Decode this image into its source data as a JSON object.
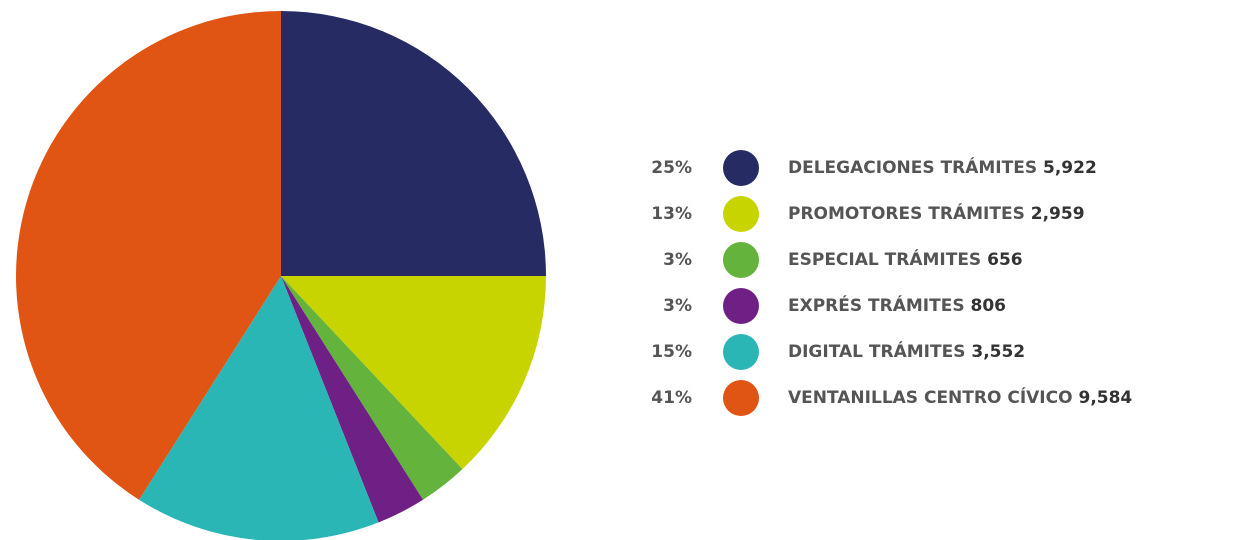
{
  "chart_data": {
    "type": "pie",
    "categories": [
      "DELEGACIONES TRÁMITES",
      "PROMOTORES TRÁMITES",
      "ESPECIAL TRÁMITES",
      "EXPRÉS TRÁMITES",
      "DIGITAL TRÁMITES",
      "VENTANILLAS CENTRO CÍVICO"
    ],
    "values": [
      25,
      13,
      3,
      3,
      15,
      41
    ],
    "value_labels": [
      "25%",
      "13%",
      "3%",
      "3%",
      "15%",
      "41%"
    ],
    "counts": [
      5922,
      2959,
      656,
      806,
      3552,
      9584
    ],
    "count_labels": [
      "5,922",
      "2,959",
      "656",
      "806",
      "3,552",
      "9,584"
    ],
    "colors": [
      "#262b63",
      "#c8d400",
      "#63b33c",
      "#6e2085",
      "#2bb6b6",
      "#e05414"
    ]
  }
}
